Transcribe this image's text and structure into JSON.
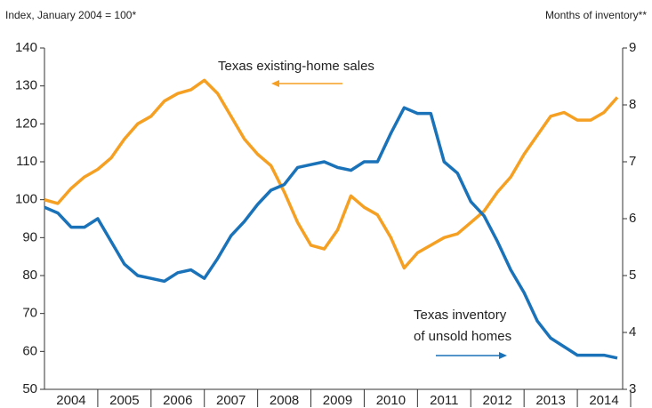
{
  "chart_data": {
    "type": "line",
    "y_label": "Index, January 2004 = 100*",
    "y2_label": "Months of inventory**",
    "annotations": [
      "Texas existing-home sales",
      "Texas inventory",
      "of unsold homes"
    ],
    "x": [
      2004,
      2004.25,
      2004.5,
      2004.75,
      2005,
      2005.25,
      2005.5,
      2005.75,
      2006,
      2006.25,
      2006.5,
      2006.75,
      2007,
      2007.25,
      2007.5,
      2007.75,
      2008,
      2008.25,
      2008.5,
      2008.75,
      2009,
      2009.25,
      2009.5,
      2009.75,
      2010,
      2010.25,
      2010.5,
      2010.75,
      2011,
      2011.25,
      2011.5,
      2011.75,
      2012,
      2012.25,
      2012.5,
      2012.75,
      2013,
      2013.25,
      2013.5,
      2013.75,
      2014,
      2014.25,
      2014.5,
      2014.75
    ],
    "xlim": [
      2004,
      2014.85
    ],
    "xticks": [
      {
        "value": 2004.5,
        "label": "2004"
      },
      {
        "value": 2005.5,
        "label": "2005"
      },
      {
        "value": 2006.5,
        "label": "2006"
      },
      {
        "value": 2007.5,
        "label": "2007"
      },
      {
        "value": 2008.5,
        "label": "2008"
      },
      {
        "value": 2009.5,
        "label": "2009"
      },
      {
        "value": 2010.5,
        "label": "2010"
      },
      {
        "value": 2011.5,
        "label": "2011"
      },
      {
        "value": 2012.5,
        "label": "2012"
      },
      {
        "value": 2013.5,
        "label": "2013"
      },
      {
        "value": 2014.5,
        "label": "2014"
      }
    ],
    "ylim": [
      50,
      140
    ],
    "yticks": [
      50,
      60,
      70,
      80,
      90,
      100,
      110,
      120,
      130,
      140
    ],
    "y2lim": [
      3,
      9
    ],
    "y2ticks": [
      3,
      4,
      5,
      6,
      7,
      8,
      9
    ],
    "series": [
      {
        "name": "Texas existing-home sales",
        "color": "#f5a023",
        "values": [
          100,
          99,
          103,
          106,
          108,
          111,
          116,
          120,
          122,
          126,
          128,
          129,
          131.5,
          128,
          122,
          116,
          112,
          109,
          102,
          94,
          88,
          87,
          92,
          101,
          98,
          96,
          90,
          82,
          86,
          88,
          90,
          91,
          94,
          97,
          102,
          106,
          112,
          117,
          122,
          123,
          121,
          121,
          123,
          127
        ]
      },
      {
        "name": "Texas inventory of unsold homes",
        "color": "#1a72b8",
        "axis": "y2",
        "values": [
          6.2,
          6.1,
          5.85,
          5.85,
          6.0,
          5.6,
          5.2,
          5.0,
          4.95,
          4.9,
          5.05,
          5.1,
          4.95,
          5.3,
          5.7,
          5.95,
          6.25,
          6.5,
          6.6,
          6.9,
          6.95,
          7.0,
          6.9,
          6.85,
          7.0,
          7.0,
          7.5,
          7.95,
          7.85,
          7.85,
          7.0,
          6.8,
          6.3,
          6.05,
          5.6,
          5.1,
          4.7,
          4.2,
          3.9,
          3.75,
          3.6,
          3.6,
          3.6,
          3.55
        ]
      }
    ]
  }
}
